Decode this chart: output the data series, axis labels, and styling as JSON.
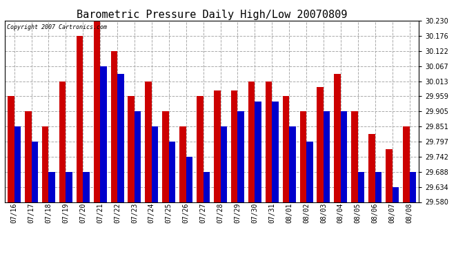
{
  "title": "Barometric Pressure Daily High/Low 20070809",
  "copyright_text": "Copyright 2007 Cartronics.com",
  "categories": [
    "07/16",
    "07/17",
    "07/18",
    "07/19",
    "07/20",
    "07/21",
    "07/22",
    "07/23",
    "07/24",
    "07/25",
    "07/26",
    "07/27",
    "07/28",
    "07/29",
    "07/30",
    "07/31",
    "08/01",
    "08/02",
    "08/03",
    "08/04",
    "08/05",
    "08/06",
    "08/07",
    "08/08"
  ],
  "highs": [
    29.959,
    29.905,
    29.851,
    30.013,
    30.176,
    30.23,
    30.122,
    29.959,
    30.013,
    29.905,
    29.851,
    29.959,
    29.98,
    29.98,
    30.013,
    30.013,
    29.959,
    29.905,
    29.993,
    30.04,
    29.905,
    29.825,
    29.77,
    29.851
  ],
  "lows": [
    29.851,
    29.797,
    29.688,
    29.688,
    29.688,
    30.067,
    30.04,
    29.905,
    29.851,
    29.797,
    29.742,
    29.688,
    29.851,
    29.905,
    29.94,
    29.94,
    29.851,
    29.797,
    29.905,
    29.905,
    29.688,
    29.688,
    29.634,
    29.688
  ],
  "ylim_min": 29.58,
  "ylim_max": 30.23,
  "yticks": [
    29.58,
    29.634,
    29.688,
    29.742,
    29.797,
    29.851,
    29.905,
    29.959,
    30.013,
    30.067,
    30.122,
    30.176,
    30.23
  ],
  "high_color": "#cc0000",
  "low_color": "#0000cc",
  "background_color": "#ffffff",
  "grid_color": "#aaaaaa",
  "title_fontsize": 11,
  "copyright_fontsize": 6,
  "tick_fontsize": 7,
  "bar_width": 0.38
}
